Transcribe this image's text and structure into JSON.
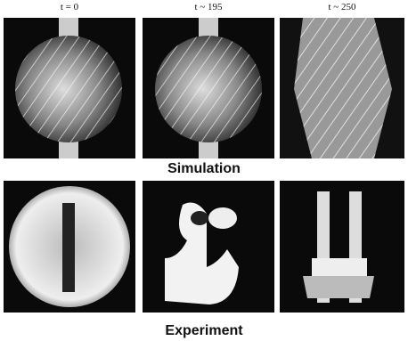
{
  "columns": [
    {
      "label": "t = 0"
    },
    {
      "label": "t ~ 195"
    },
    {
      "label": "t ~ 250"
    }
  ],
  "rows": [
    {
      "label": "Simulation"
    },
    {
      "label": "Experiment"
    }
  ]
}
